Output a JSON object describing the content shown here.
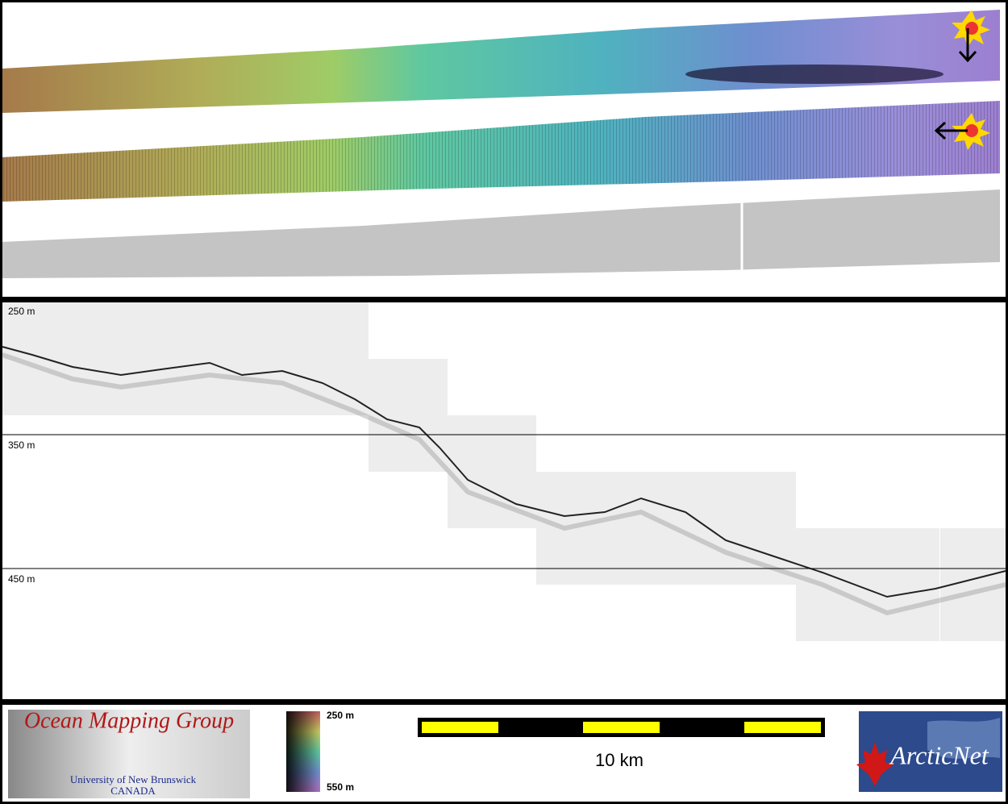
{
  "depth_labels": [
    "250 m",
    "350 m",
    "450 m"
  ],
  "logo": {
    "title": "Ocean Mapping Group",
    "university": "University of New Brunswick",
    "country": "CANADA"
  },
  "color_scale": {
    "top": "250 m",
    "bottom": "550 m"
  },
  "scale_bar": {
    "label": "10 km"
  },
  "partner_logo": {
    "name": "ArcticNet"
  }
}
